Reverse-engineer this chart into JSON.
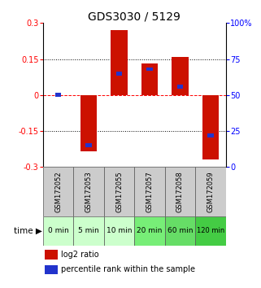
{
  "title": "GDS3030 / 5129",
  "samples": [
    "GSM172052",
    "GSM172053",
    "GSM172055",
    "GSM172057",
    "GSM172058",
    "GSM172059"
  ],
  "time_labels": [
    "0 min",
    "5 min",
    "10 min",
    "20 min",
    "60 min",
    "120 min"
  ],
  "log2_ratio": [
    0.0,
    -0.235,
    0.27,
    0.13,
    0.16,
    -0.27
  ],
  "percentile_rank": [
    50,
    15,
    65,
    68,
    56,
    22
  ],
  "ylim_left": [
    -0.3,
    0.3
  ],
  "ylim_right": [
    0,
    100
  ],
  "yticks_left": [
    -0.3,
    -0.15,
    0,
    0.15,
    0.3
  ],
  "ytick_labels_left": [
    "-0.3",
    "-0.15",
    "0",
    "0.15",
    "0.3"
  ],
  "yticks_right": [
    0,
    25,
    50,
    75,
    100
  ],
  "ytick_labels_right": [
    "0",
    "25",
    "50",
    "75",
    "100%"
  ],
  "hlines_dotted": [
    0.15,
    -0.15
  ],
  "hline_dashed": 0,
  "bar_color": "#cc1100",
  "blue_color": "#2233cc",
  "time_bg_colors": [
    "#ccffcc",
    "#ccffcc",
    "#ccffcc",
    "#77ee77",
    "#66dd66",
    "#44cc44"
  ],
  "sample_bg_color": "#cccccc",
  "title_fontsize": 10,
  "tick_fontsize": 7,
  "sample_fontsize": 6,
  "time_fontsize": 6.5,
  "legend_fontsize": 7
}
